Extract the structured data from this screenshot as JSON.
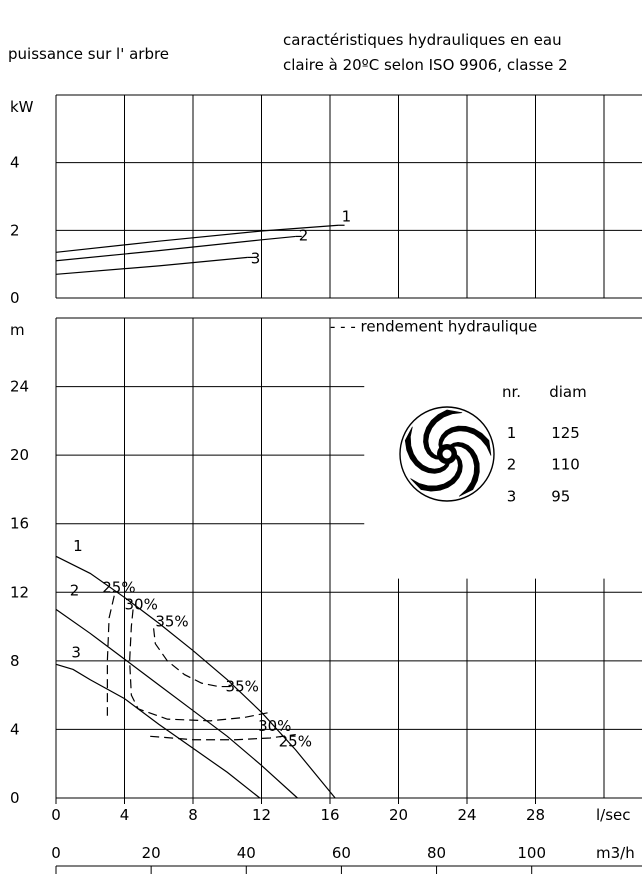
{
  "header": {
    "left_title": "puissance sur l' arbre",
    "right_title_line1": "caractéristiques hydrauliques en eau",
    "right_title_line2": "claire à 20ºC selon ISO 9906, classe 2"
  },
  "chart_data": [
    {
      "type": "line",
      "name": "power",
      "ylabel": "kW",
      "ylim": [
        0,
        6
      ],
      "yticks": [
        0,
        2,
        4
      ],
      "xlim": [
        0,
        32
      ],
      "grid": true,
      "series": [
        {
          "name": "1",
          "x": [
            0,
            6,
            12,
            16.5
          ],
          "y": [
            1.35,
            1.68,
            1.98,
            2.15
          ]
        },
        {
          "name": "2",
          "x": [
            0,
            6,
            12,
            14
          ],
          "y": [
            1.1,
            1.4,
            1.72,
            1.82
          ]
        },
        {
          "name": "3",
          "x": [
            0,
            6,
            11.2
          ],
          "y": [
            0.7,
            0.95,
            1.2
          ]
        }
      ]
    },
    {
      "type": "line",
      "name": "head",
      "ylabel": "m",
      "ylim": [
        0,
        28
      ],
      "yticks": [
        0,
        4,
        8,
        12,
        16,
        20,
        24
      ],
      "xlim": [
        0,
        32
      ],
      "xticks": [
        0,
        4,
        8,
        12,
        16,
        20,
        24,
        28
      ],
      "xlabel": "l/sec",
      "x2ticks": [
        0,
        20,
        40,
        60,
        80,
        100
      ],
      "x2label": "m3/h",
      "grid": true,
      "legend": "- - - rendement hydraulique",
      "table": {
        "headers": [
          "nr.",
          "diam"
        ],
        "rows": [
          [
            "1",
            "125"
          ],
          [
            "2",
            "110"
          ],
          [
            "3",
            "95"
          ]
        ]
      },
      "series": [
        {
          "name": "1",
          "x": [
            0,
            2,
            4,
            6,
            8,
            10,
            12,
            14,
            16.3
          ],
          "y": [
            14.1,
            13.1,
            11.7,
            10.2,
            8.6,
            6.9,
            5.0,
            2.8,
            0
          ]
        },
        {
          "name": "2",
          "x": [
            0,
            2,
            4,
            6,
            8,
            10,
            12,
            14.1
          ],
          "y": [
            11.0,
            9.6,
            8.1,
            6.6,
            5.1,
            3.6,
            1.9,
            0
          ]
        },
        {
          "name": "3",
          "x": [
            0,
            1,
            2,
            4,
            6,
            8,
            10,
            11.9
          ],
          "y": [
            7.8,
            7.5,
            6.9,
            5.8,
            4.3,
            2.9,
            1.5,
            0
          ]
        }
      ],
      "efficiency": [
        {
          "label": "25%",
          "points": [
            [
              3.4,
              11.8
            ],
            [
              3.1,
              10.5
            ],
            [
              3.0,
              8.0
            ],
            [
              3.0,
              6.0
            ],
            [
              3.0,
              4.8
            ]
          ]
        },
        {
          "label": "25%",
          "points": [
            [
              5.5,
              3.6
            ],
            [
              8.0,
              3.4
            ],
            [
              10.5,
              3.4
            ],
            [
              12.5,
              3.5
            ],
            [
              14.0,
              3.7
            ]
          ]
        },
        {
          "label": "30%",
          "points": [
            [
              4.5,
              11.0
            ],
            [
              4.4,
              10.0
            ],
            [
              4.3,
              8.0
            ],
            [
              4.4,
              6.0
            ],
            [
              4.8,
              5.2
            ],
            [
              6.5,
              4.6
            ],
            [
              9.0,
              4.5
            ],
            [
              11.0,
              4.7
            ],
            [
              12.5,
              5.0
            ]
          ]
        },
        {
          "label": "35%",
          "points": [
            [
              5.7,
              9.9
            ],
            [
              5.8,
              9.0
            ],
            [
              6.5,
              8.0
            ],
            [
              7.5,
              7.2
            ],
            [
              8.5,
              6.7
            ],
            [
              9.5,
              6.5
            ],
            [
              10.3,
              6.5
            ]
          ]
        }
      ],
      "efficiency_labels": [
        {
          "text": "25%",
          "x": 2.7,
          "y": 12.0
        },
        {
          "text": "30%",
          "x": 4.0,
          "y": 11.0
        },
        {
          "text": "35%",
          "x": 5.8,
          "y": 10.0
        },
        {
          "text": "35%",
          "x": 9.9,
          "y": 6.2
        },
        {
          "text": "30%",
          "x": 11.8,
          "y": 3.9
        },
        {
          "text": "25%",
          "x": 13.0,
          "y": 3.0
        }
      ]
    }
  ]
}
